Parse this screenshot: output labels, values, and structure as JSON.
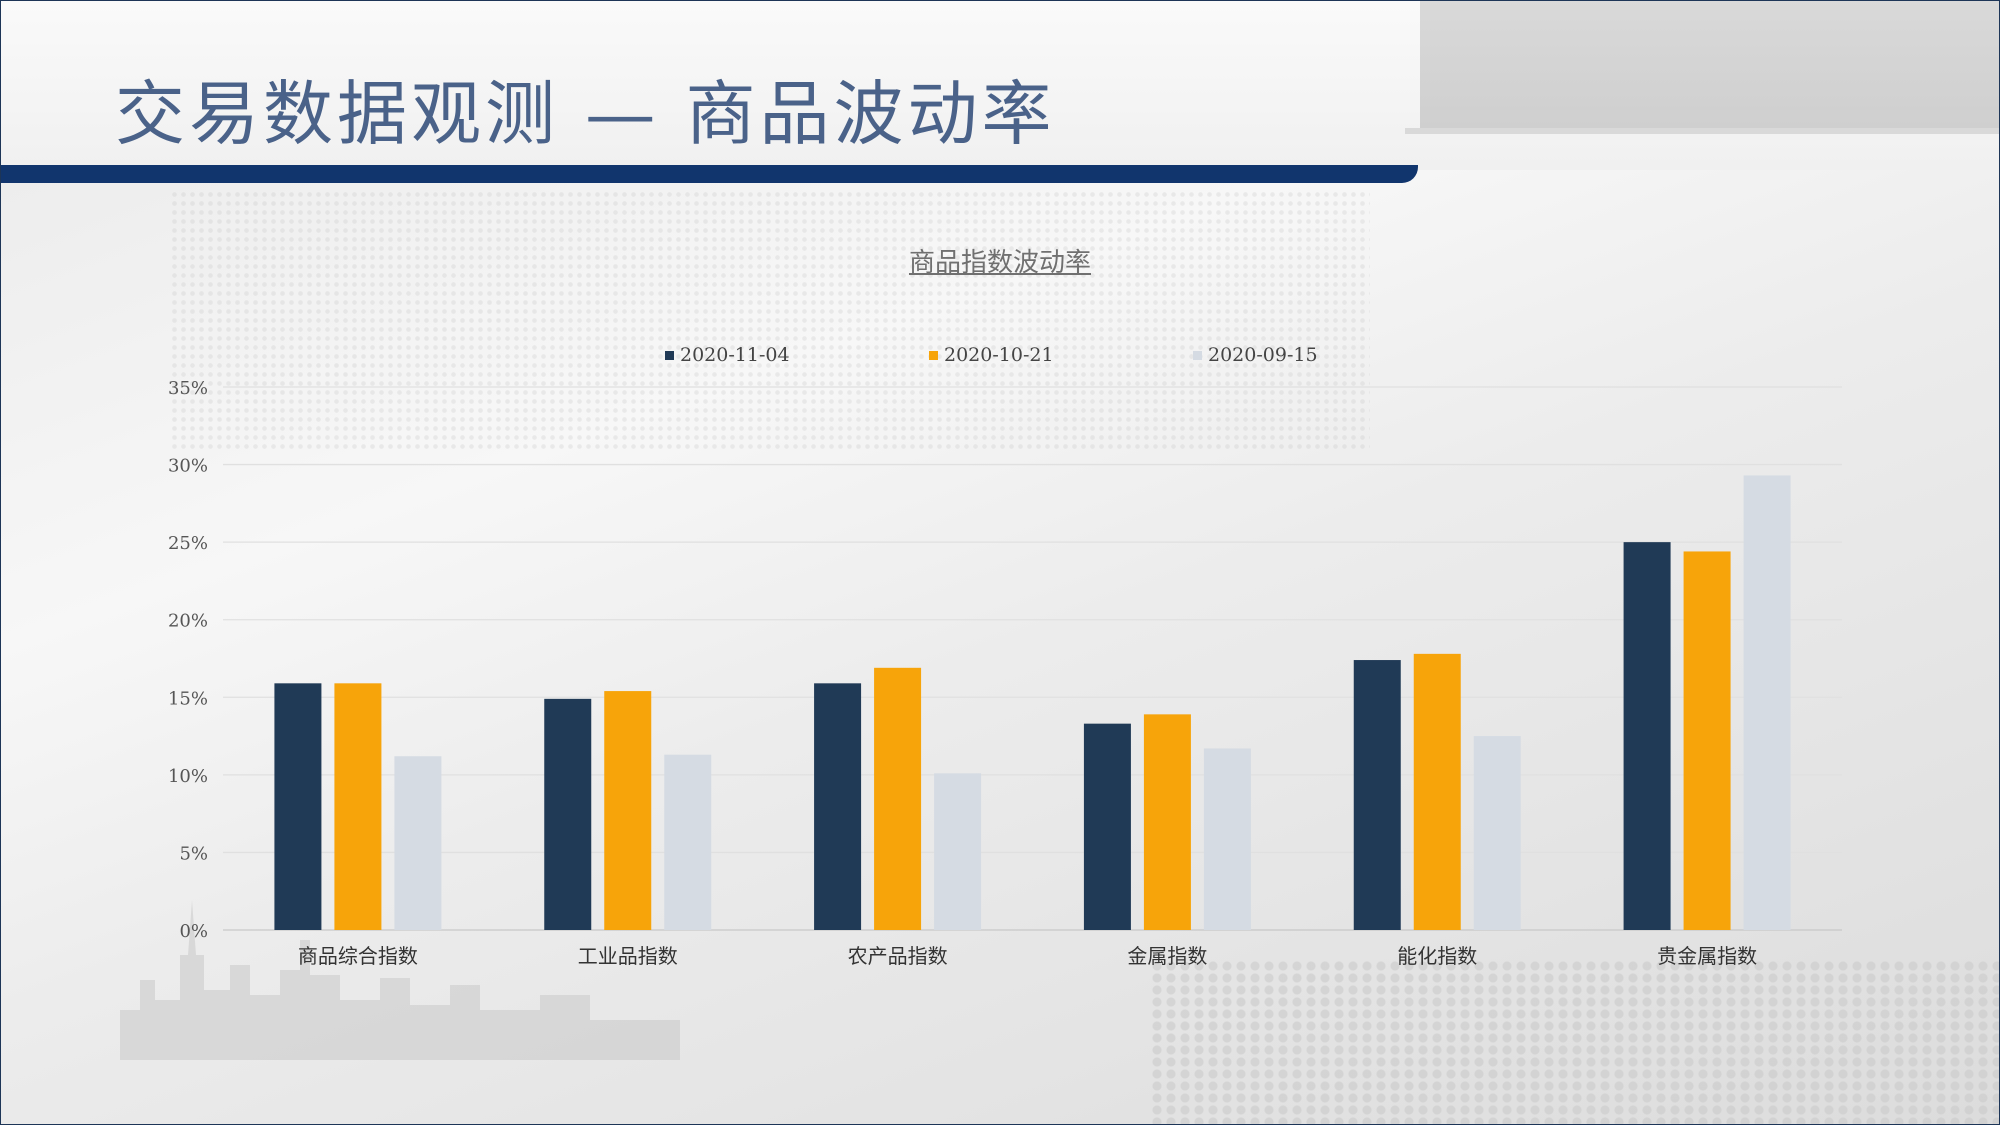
{
  "slide": {
    "title": "交易数据观测 — 商品波动率"
  },
  "colors": {
    "accent": "#11356d",
    "title_text": "#4a6289"
  },
  "chart_data": {
    "type": "bar",
    "title": "商品指数波动率",
    "categories": [
      "商品综合指数",
      "工业品指数",
      "农产品指数",
      "金属指数",
      "能化指数",
      "贵金属指数"
    ],
    "series": [
      {
        "name": "2020-11-04",
        "color": "#203a56",
        "values": [
          15.9,
          14.9,
          15.9,
          13.3,
          17.4,
          25.0
        ]
      },
      {
        "name": "2020-10-21",
        "color": "#f7a40a",
        "values": [
          15.9,
          15.4,
          16.9,
          13.9,
          17.8,
          24.4
        ]
      },
      {
        "name": "2020-09-15",
        "color": "#d5dbe3",
        "values": [
          11.2,
          11.3,
          10.1,
          11.7,
          12.5,
          29.3
        ]
      }
    ],
    "yticks": [
      "0%",
      "5%",
      "10%",
      "15%",
      "20%",
      "25%",
      "30%",
      "35%"
    ],
    "ylim": [
      0,
      35
    ],
    "grid": true,
    "legend_position": "top"
  }
}
